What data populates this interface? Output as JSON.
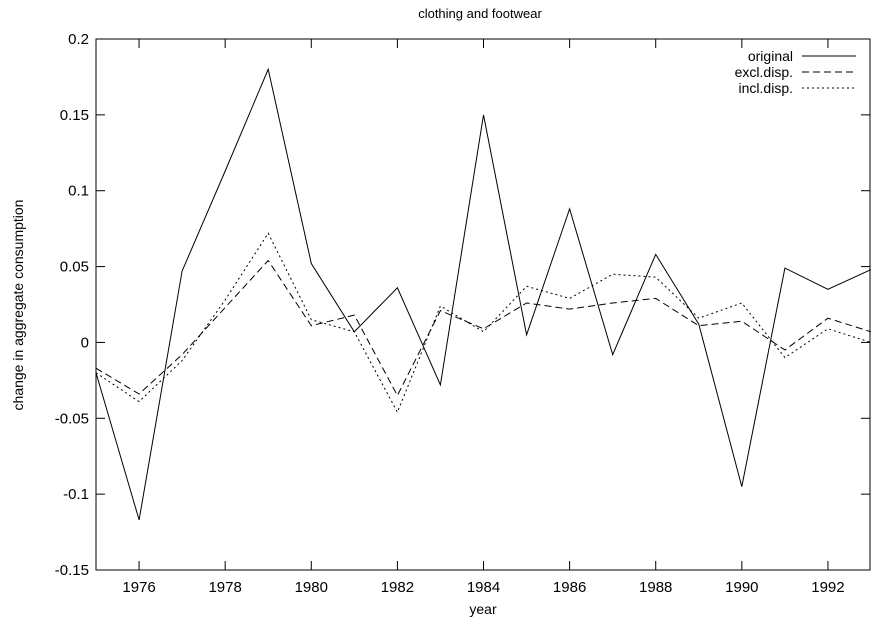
{
  "chart_data": {
    "type": "line",
    "title": "clothing and footwear",
    "xlabel": "year",
    "ylabel": "change in aggregate consumption",
    "xlim": [
      1975,
      1993
    ],
    "ylim": [
      -0.15,
      0.2
    ],
    "xticks": [
      1976,
      1978,
      1980,
      1982,
      1984,
      1986,
      1988,
      1990,
      1992
    ],
    "yticks": [
      -0.15,
      -0.1,
      -0.05,
      0,
      0.05,
      0.1,
      0.15,
      0.2
    ],
    "ytick_labels": [
      "-0.15",
      "-0.1",
      "-0.05",
      "0",
      "0.05",
      "0.1",
      "0.15",
      "0.2"
    ],
    "grid": false,
    "legend": "top-right",
    "x": [
      1975,
      1976,
      1977,
      1978,
      1979,
      1980,
      1981,
      1982,
      1983,
      1984,
      1985,
      1986,
      1987,
      1988,
      1989,
      1990,
      1991,
      1992,
      1993
    ],
    "series": [
      {
        "name": "original",
        "style": "solid",
        "values": [
          -0.02,
          -0.117,
          0.047,
          0.113,
          0.18,
          0.052,
          0.007,
          0.036,
          -0.028,
          0.15,
          0.005,
          0.088,
          -0.008,
          0.058,
          0.012,
          -0.095,
          0.049,
          0.035,
          0.048
        ]
      },
      {
        "name": "excl.disp.",
        "style": "dashed",
        "values": [
          -0.017,
          -0.034,
          -0.008,
          0.023,
          0.054,
          0.011,
          0.018,
          -0.035,
          0.021,
          0.009,
          0.026,
          0.022,
          0.026,
          0.029,
          0.011,
          0.014,
          -0.005,
          0.016,
          0.007
        ]
      },
      {
        "name": "incl.disp.",
        "style": "dotted",
        "values": [
          -0.02,
          -0.039,
          -0.012,
          0.028,
          0.072,
          0.015,
          0.007,
          -0.046,
          0.024,
          0.007,
          0.037,
          0.029,
          0.045,
          0.043,
          0.016,
          0.026,
          -0.01,
          0.009,
          0.0
        ]
      }
    ]
  }
}
